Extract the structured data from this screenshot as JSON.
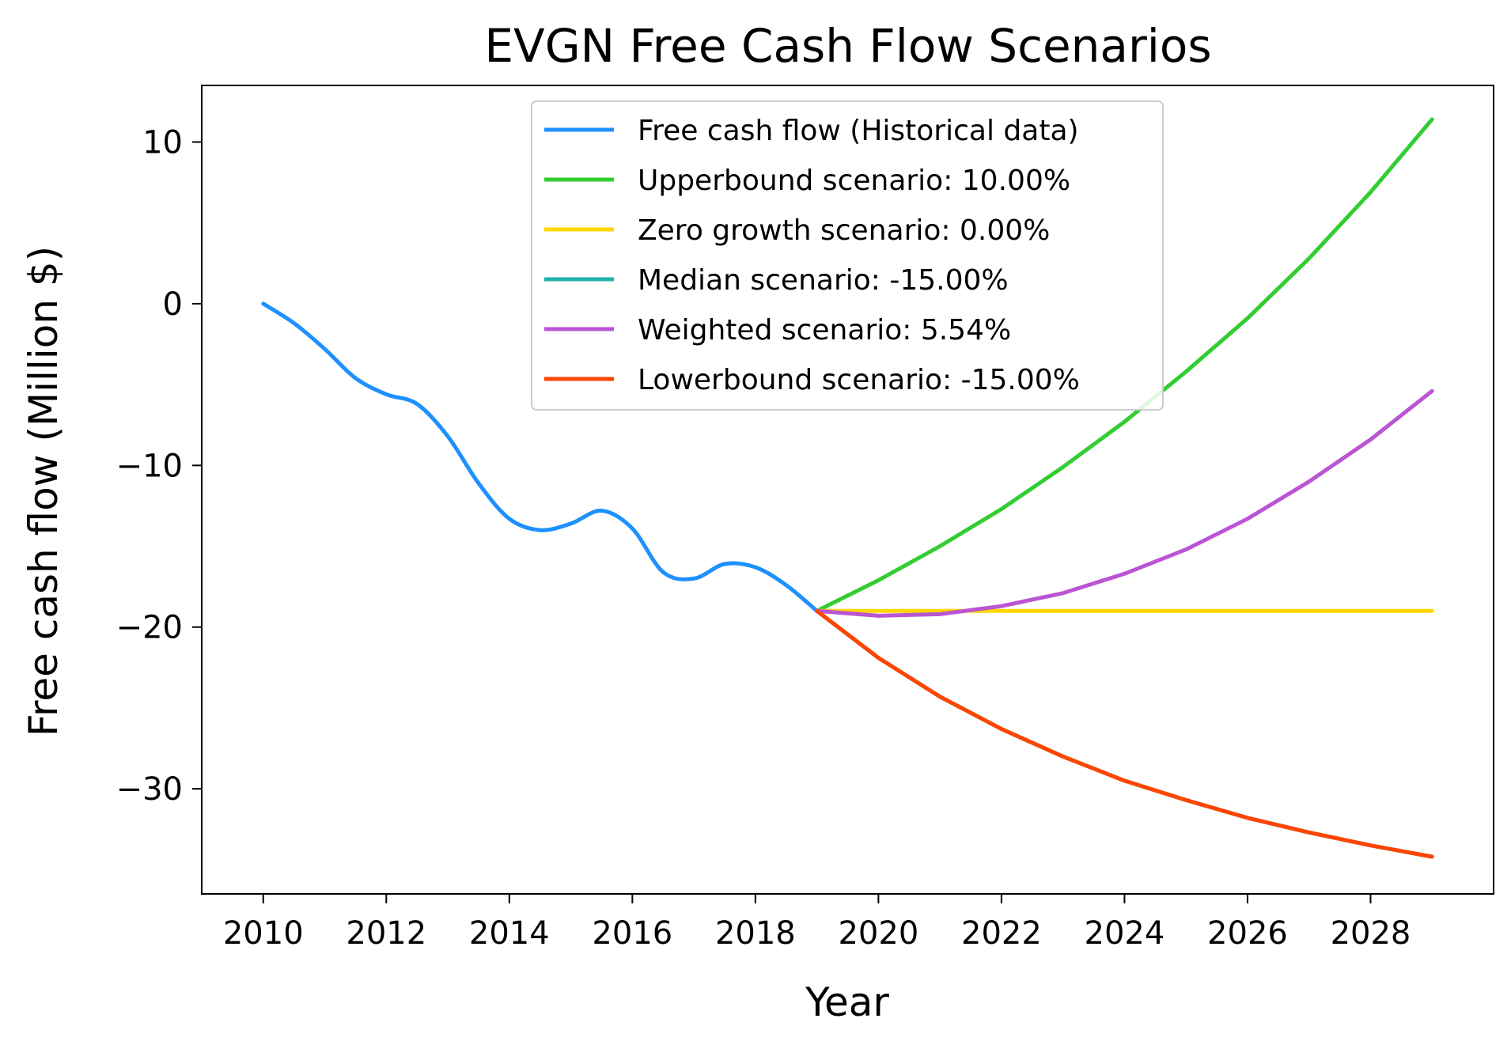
{
  "chart_data": {
    "type": "line",
    "title": "EVGN Free Cash Flow Scenarios",
    "xlabel": "Year",
    "ylabel": "Free cash flow (Million $)",
    "xlim": [
      2009.0,
      2030.0
    ],
    "ylim": [
      -36.5,
      13.5
    ],
    "x_ticks": [
      2010,
      2012,
      2014,
      2016,
      2018,
      2020,
      2022,
      2024,
      2026,
      2028
    ],
    "y_ticks": [
      10,
      0,
      -10,
      -20,
      -30
    ],
    "y_tick_labels": [
      "10",
      "0",
      "−10",
      "−20",
      "−30"
    ],
    "grid": false,
    "legend_placement": "upper center",
    "series": [
      {
        "name": "Free cash flow (Historical data)",
        "color": "#1e90ff",
        "x": [
          2010,
          2010.5,
          2011,
          2011.5,
          2012,
          2012.5,
          2013,
          2013.5,
          2014,
          2014.5,
          2015,
          2015.5,
          2016,
          2016.5,
          2017,
          2017.5,
          2018,
          2018.5,
          2019
        ],
        "y": [
          0,
          -1.2,
          -2.8,
          -4.6,
          -5.6,
          -6.2,
          -8.2,
          -11.1,
          -13.3,
          -14.0,
          -13.6,
          -12.8,
          -13.9,
          -16.6,
          -17.0,
          -16.1,
          -16.3,
          -17.4,
          -19.0
        ]
      },
      {
        "name": "Upperbound scenario: 10.00%",
        "color": "#32cd32",
        "x": [
          2019,
          2020,
          2021,
          2022,
          2023,
          2024,
          2025,
          2026,
          2027,
          2028,
          2029
        ],
        "y": [
          -19.0,
          -17.1,
          -15.0,
          -12.7,
          -10.1,
          -7.3,
          -4.2,
          -0.9,
          2.8,
          6.9,
          11.4
        ]
      },
      {
        "name": "Zero growth scenario: 0.00%",
        "color": "#ffd700",
        "x": [
          2019,
          2020,
          2021,
          2022,
          2023,
          2024,
          2025,
          2026,
          2027,
          2028,
          2029
        ],
        "y": [
          -19.0,
          -19.0,
          -19.0,
          -19.0,
          -19.0,
          -19.0,
          -19.0,
          -19.0,
          -19.0,
          -19.0,
          -19.0
        ]
      },
      {
        "name": "Median scenario: -15.00%",
        "color": "#20b2aa",
        "x": [
          2019,
          2020,
          2021,
          2022,
          2023,
          2024,
          2025,
          2026,
          2027,
          2028,
          2029
        ],
        "y": [
          -19.0,
          -21.9,
          -24.3,
          -26.3,
          -28.0,
          -29.5,
          -30.7,
          -31.8,
          -32.7,
          -33.5,
          -34.2
        ]
      },
      {
        "name": "Weighted scenario: 5.54%",
        "color": "#ba55d3",
        "x": [
          2019,
          2020,
          2021,
          2022,
          2023,
          2024,
          2025,
          2026,
          2027,
          2028,
          2029
        ],
        "y": [
          -19.0,
          -19.3,
          -19.2,
          -18.7,
          -17.9,
          -16.7,
          -15.2,
          -13.3,
          -11.0,
          -8.4,
          -5.4
        ]
      },
      {
        "name": "Lowerbound scenario: -15.00%",
        "color": "#ff4500",
        "x": [
          2019,
          2020,
          2021,
          2022,
          2023,
          2024,
          2025,
          2026,
          2027,
          2028,
          2029
        ],
        "y": [
          -19.0,
          -21.9,
          -24.3,
          -26.3,
          -28.0,
          -29.5,
          -30.7,
          -31.8,
          -32.7,
          -33.5,
          -34.2
        ]
      }
    ]
  }
}
